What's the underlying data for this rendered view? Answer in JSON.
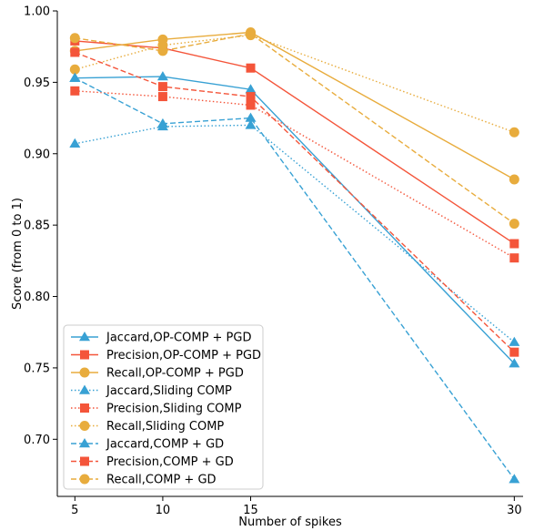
{
  "chart_data": {
    "type": "line",
    "title": "",
    "xlabel": "Number of spikes",
    "ylabel": "Score (from 0 to 1)",
    "x": [
      5,
      10,
      15,
      30
    ],
    "xticks": [
      "5",
      "10",
      "15",
      "30"
    ],
    "xlim": [
      4,
      30.5
    ],
    "ylim": [
      0.66,
      1.0
    ],
    "yticks": [
      "0.70",
      "0.75",
      "0.80",
      "0.85",
      "0.90",
      "0.95",
      "1.00"
    ],
    "ytick_values": [
      0.7,
      0.75,
      0.8,
      0.85,
      0.9,
      0.95,
      1.0
    ],
    "grid": false,
    "legend_position": "bottom-left",
    "colors": {
      "jaccard": "#38a1d4",
      "precision": "#f4553a",
      "recall": "#e8ac3d"
    },
    "series": [
      {
        "name": "Jaccard,OP-COMP + PGD",
        "metric": "jaccard",
        "style": "solid",
        "marker": "triangle",
        "values": [
          0.953,
          0.954,
          0.945,
          0.753
        ]
      },
      {
        "name": "Precision,OP-COMP + PGD",
        "metric": "precision",
        "style": "solid",
        "marker": "square",
        "values": [
          0.979,
          0.974,
          0.96,
          0.837
        ]
      },
      {
        "name": "Recall,OP-COMP + PGD",
        "metric": "recall",
        "style": "solid",
        "marker": "circle",
        "values": [
          0.972,
          0.98,
          0.985,
          0.882
        ]
      },
      {
        "name": "Jaccard,Sliding COMP",
        "metric": "jaccard",
        "style": "dotted",
        "marker": "triangle",
        "values": [
          0.907,
          0.919,
          0.92,
          0.768
        ]
      },
      {
        "name": "Precision,Sliding COMP",
        "metric": "precision",
        "style": "dotted",
        "marker": "square",
        "values": [
          0.944,
          0.94,
          0.934,
          0.827
        ]
      },
      {
        "name": "Recall,Sliding COMP",
        "metric": "recall",
        "style": "dotted",
        "marker": "circle",
        "values": [
          0.959,
          0.976,
          0.983,
          0.915
        ]
      },
      {
        "name": "Jaccard,COMP + GD",
        "metric": "jaccard",
        "style": "dashed",
        "marker": "triangle",
        "values": [
          0.953,
          0.921,
          0.925,
          0.672
        ]
      },
      {
        "name": "Precision,COMP + GD",
        "metric": "precision",
        "style": "dashed",
        "marker": "square",
        "values": [
          0.971,
          0.947,
          0.94,
          0.761
        ]
      },
      {
        "name": "Recall,COMP + GD",
        "metric": "recall",
        "style": "dashed",
        "marker": "circle",
        "values": [
          0.981,
          0.972,
          0.984,
          0.851
        ]
      }
    ]
  }
}
